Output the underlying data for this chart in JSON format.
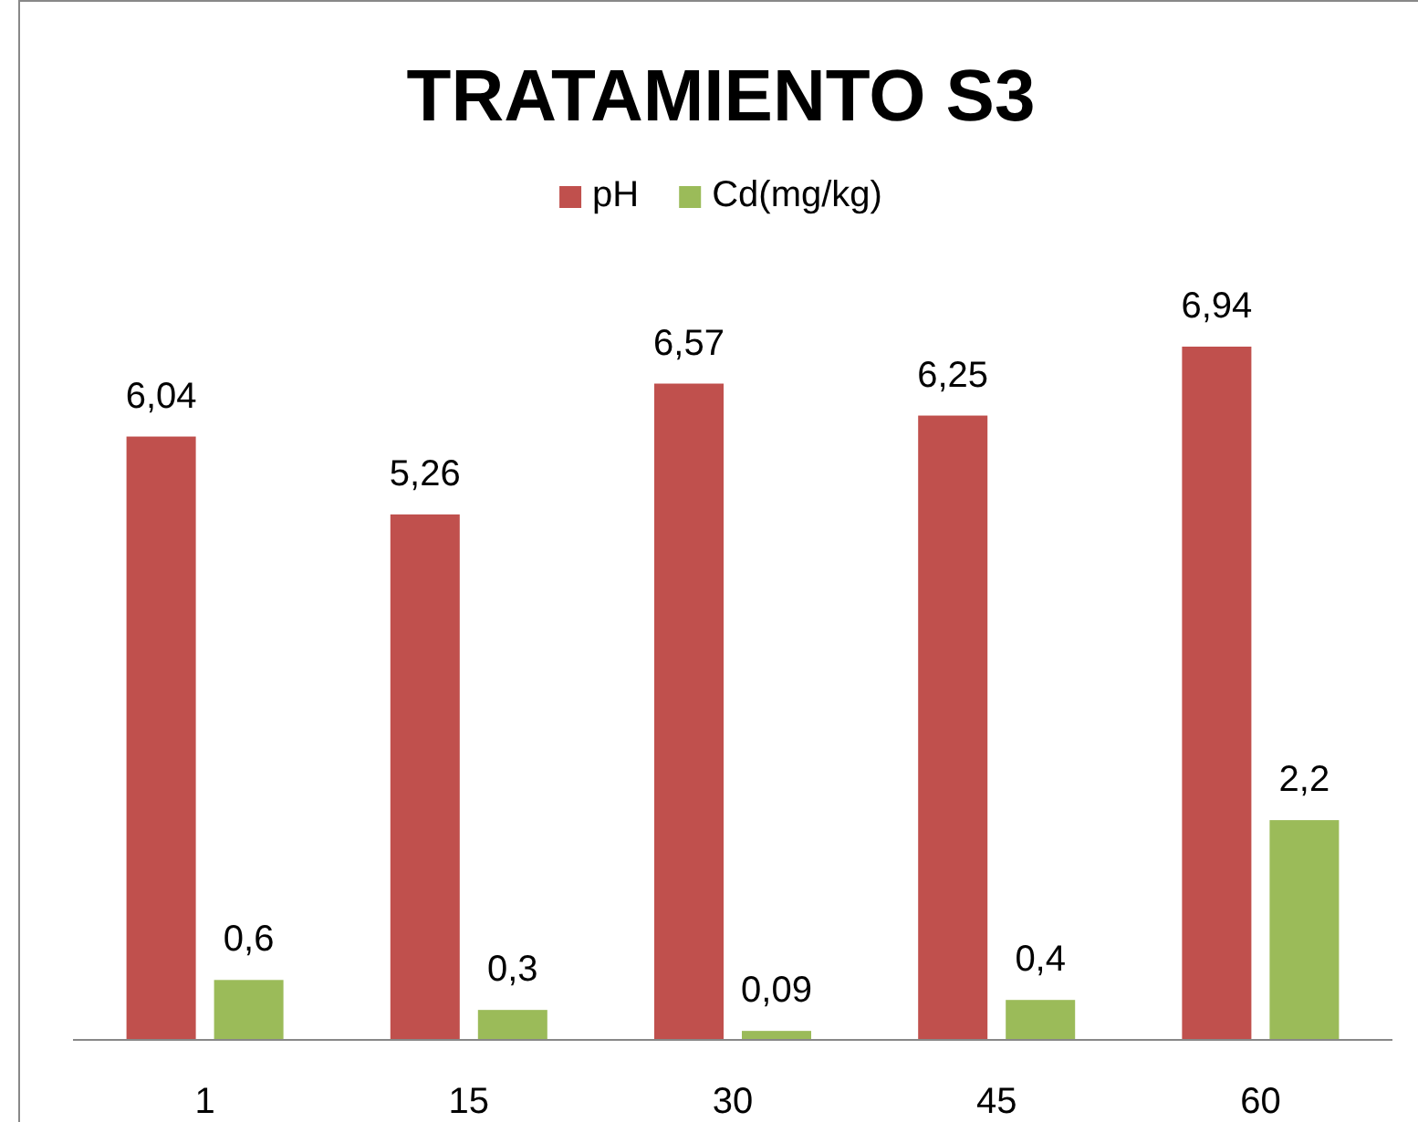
{
  "chart_data": {
    "type": "bar",
    "title": "TRATAMIENTO S3",
    "categories": [
      "1",
      "15",
      "30",
      "45",
      "60"
    ],
    "series": [
      {
        "name": "pH",
        "color": "#c0504d",
        "values": [
          6.04,
          5.26,
          6.57,
          6.25,
          6.94
        ],
        "value_labels": [
          "6,04",
          "5,26",
          "6,57",
          "6,25",
          "6,94"
        ]
      },
      {
        "name": "Cd(mg/kg)",
        "color": "#9bbb59",
        "values": [
          0.6,
          0.3,
          0.09,
          0.4,
          2.2
        ],
        "value_labels": [
          "0,6",
          "0,3",
          "0,09",
          "0,4",
          "2,2"
        ]
      }
    ],
    "legend": "top"
  }
}
